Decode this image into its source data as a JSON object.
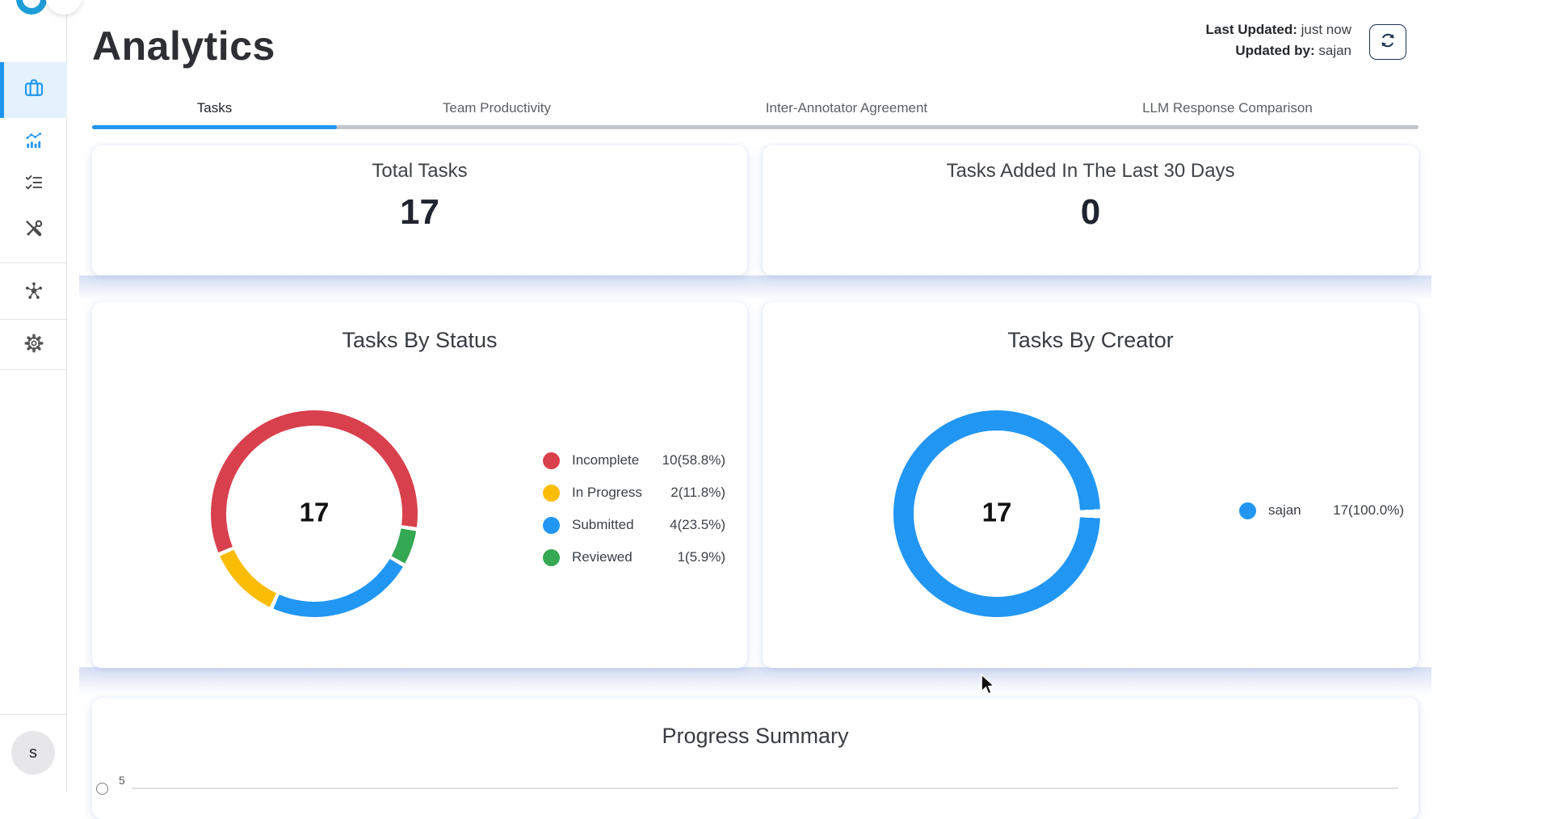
{
  "app": {
    "page_title": "Analytics"
  },
  "header": {
    "last_updated_label": "Last Updated:",
    "last_updated_value": "just now",
    "updated_by_label": "Updated by:",
    "updated_by_value": "sajan",
    "refresh_icon": "sync-icon"
  },
  "sidebar": {
    "icons": [
      "briefcase-icon",
      "analytics-chart-icon",
      "checklist-icon",
      "tools-icon",
      "network-hub-icon",
      "settings-gear-icon"
    ],
    "active_icon": "briefcase-icon",
    "avatar_letter": "s"
  },
  "tabs": {
    "accent_color": "#2196F3",
    "items": [
      {
        "label": "Tasks",
        "active": true
      },
      {
        "label": "Team Productivity",
        "active": false
      },
      {
        "label": "Inter-Annotator Agreement",
        "active": false
      },
      {
        "label": "LLM Response Comparison",
        "active": false
      }
    ]
  },
  "stat_cards": [
    {
      "title": "Total Tasks",
      "value": "17"
    },
    {
      "title": "Tasks Added In The Last 30 Days",
      "value": "0"
    }
  ],
  "progress_card": {
    "title": "Progress Summary",
    "visible_y_tick": "5"
  },
  "chart_data": [
    {
      "type": "pie",
      "donut": true,
      "title": "Tasks By Status",
      "center_label": "17",
      "total": 17,
      "legend_position": "right",
      "slices": [
        {
          "label": "Incomplete",
          "value": 10,
          "pct": 58.8,
          "display": "10(58.8%)",
          "color": "#D8404D"
        },
        {
          "label": "In Progress",
          "value": 2,
          "pct": 11.8,
          "display": "2(11.8%)",
          "color": "#FBBC05"
        },
        {
          "label": "Submitted",
          "value": 4,
          "pct": 23.5,
          "display": "4(23.5%)",
          "color": "#2196F3"
        },
        {
          "label": "Reviewed",
          "value": 1,
          "pct": 5.9,
          "display": "1(5.9%)",
          "color": "#34A853"
        }
      ],
      "start_deg": 248,
      "gap_deg": 2.2,
      "draw_order": [
        0,
        3,
        2,
        1
      ]
    },
    {
      "type": "pie",
      "donut": true,
      "title": "Tasks By Creator",
      "center_label": "17",
      "total": 17,
      "legend_position": "right",
      "slices": [
        {
          "label": "sajan",
          "value": 17,
          "pct": 100.0,
          "display": "17(100.0%)",
          "color": "#2196F3"
        }
      ],
      "start_deg": 92.5,
      "gap_deg": 5,
      "draw_order": [
        0
      ]
    }
  ]
}
